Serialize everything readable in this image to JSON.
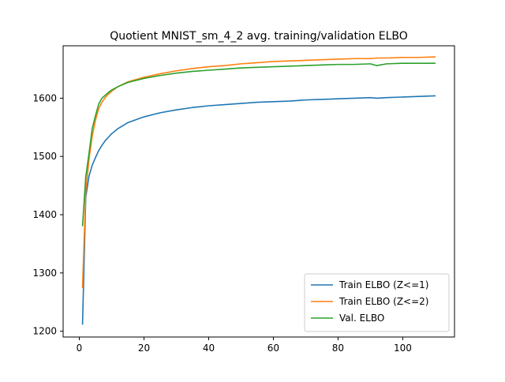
{
  "chart_data": {
    "type": "line",
    "title": "Quotient MNIST_sm_4_2 avg. training/validation ELBO",
    "xlabel": "",
    "ylabel": "",
    "xlim": [
      -5,
      116
    ],
    "ylim": [
      1190,
      1690
    ],
    "xticks": [
      0,
      20,
      40,
      60,
      80,
      100
    ],
    "yticks": [
      1200,
      1300,
      1400,
      1500,
      1600
    ],
    "grid": false,
    "legend_position": "lower-right",
    "x": [
      1,
      2,
      3,
      4,
      5,
      6,
      7,
      8,
      9,
      10,
      12,
      15,
      20,
      25,
      30,
      35,
      40,
      45,
      50,
      55,
      60,
      65,
      70,
      75,
      80,
      85,
      90,
      92,
      95,
      100,
      105,
      110
    ],
    "series": [
      {
        "name": "Train ELBO (Z<=1)",
        "color": "#1f77b4",
        "values": [
          1212,
          1430,
          1466,
          1485,
          1498,
          1510,
          1519,
          1527,
          1533,
          1539,
          1548,
          1558,
          1568,
          1575,
          1580,
          1584,
          1587,
          1589,
          1591,
          1593,
          1594,
          1595,
          1597,
          1598,
          1599,
          1600,
          1601,
          1600,
          1601,
          1602,
          1603,
          1604
        ]
      },
      {
        "name": "Train ELBO (Z<=2)",
        "color": "#ff7f0e",
        "values": [
          1275,
          1440,
          1495,
          1535,
          1562,
          1582,
          1593,
          1601,
          1607,
          1612,
          1620,
          1628,
          1636,
          1642,
          1647,
          1651,
          1654,
          1656,
          1659,
          1661,
          1663,
          1664,
          1665,
          1666,
          1667,
          1668,
          1668,
          1669,
          1669,
          1670,
          1670,
          1671
        ]
      },
      {
        "name": "Val. ELBO",
        "color": "#2ca02c",
        "values": [
          1381,
          1465,
          1505,
          1548,
          1570,
          1590,
          1600,
          1605,
          1610,
          1614,
          1620,
          1627,
          1634,
          1639,
          1643,
          1646,
          1648,
          1650,
          1652,
          1653,
          1654,
          1655,
          1656,
          1657,
          1658,
          1658,
          1659,
          1656,
          1659,
          1660,
          1660,
          1660
        ]
      }
    ]
  }
}
